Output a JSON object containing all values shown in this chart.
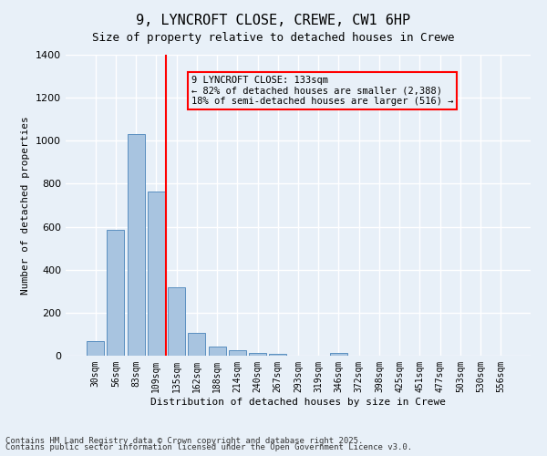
{
  "title_line1": "9, LYNCROFT CLOSE, CREWE, CW1 6HP",
  "title_line2": "Size of property relative to detached houses in Crewe",
  "xlabel": "Distribution of detached houses by size in Crewe",
  "ylabel": "Number of detached properties",
  "categories": [
    "30sqm",
    "56sqm",
    "83sqm",
    "109sqm",
    "135sqm",
    "162sqm",
    "188sqm",
    "214sqm",
    "240sqm",
    "267sqm",
    "293sqm",
    "319sqm",
    "346sqm",
    "372sqm",
    "398sqm",
    "425sqm",
    "451sqm",
    "477sqm",
    "503sqm",
    "530sqm",
    "556sqm"
  ],
  "values": [
    70,
    585,
    1030,
    765,
    320,
    105,
    43,
    25,
    12,
    8,
    0,
    0,
    14,
    0,
    0,
    0,
    0,
    0,
    0,
    0,
    0
  ],
  "bar_color": "#a8c4e0",
  "bar_edge_color": "#5a8fc0",
  "vline_x": 4,
  "vline_color": "red",
  "annotation_text": "9 LYNCROFT CLOSE: 133sqm\n← 82% of detached houses are smaller (2,388)\n18% of semi-detached houses are larger (516) →",
  "annotation_box_color": "red",
  "ylim": [
    0,
    1400
  ],
  "yticks": [
    0,
    200,
    400,
    600,
    800,
    1000,
    1200,
    1400
  ],
  "background_color": "#e8f0f8",
  "grid_color": "#ffffff",
  "footer_line1": "Contains HM Land Registry data © Crown copyright and database right 2025.",
  "footer_line2": "Contains public sector information licensed under the Open Government Licence v3.0."
}
